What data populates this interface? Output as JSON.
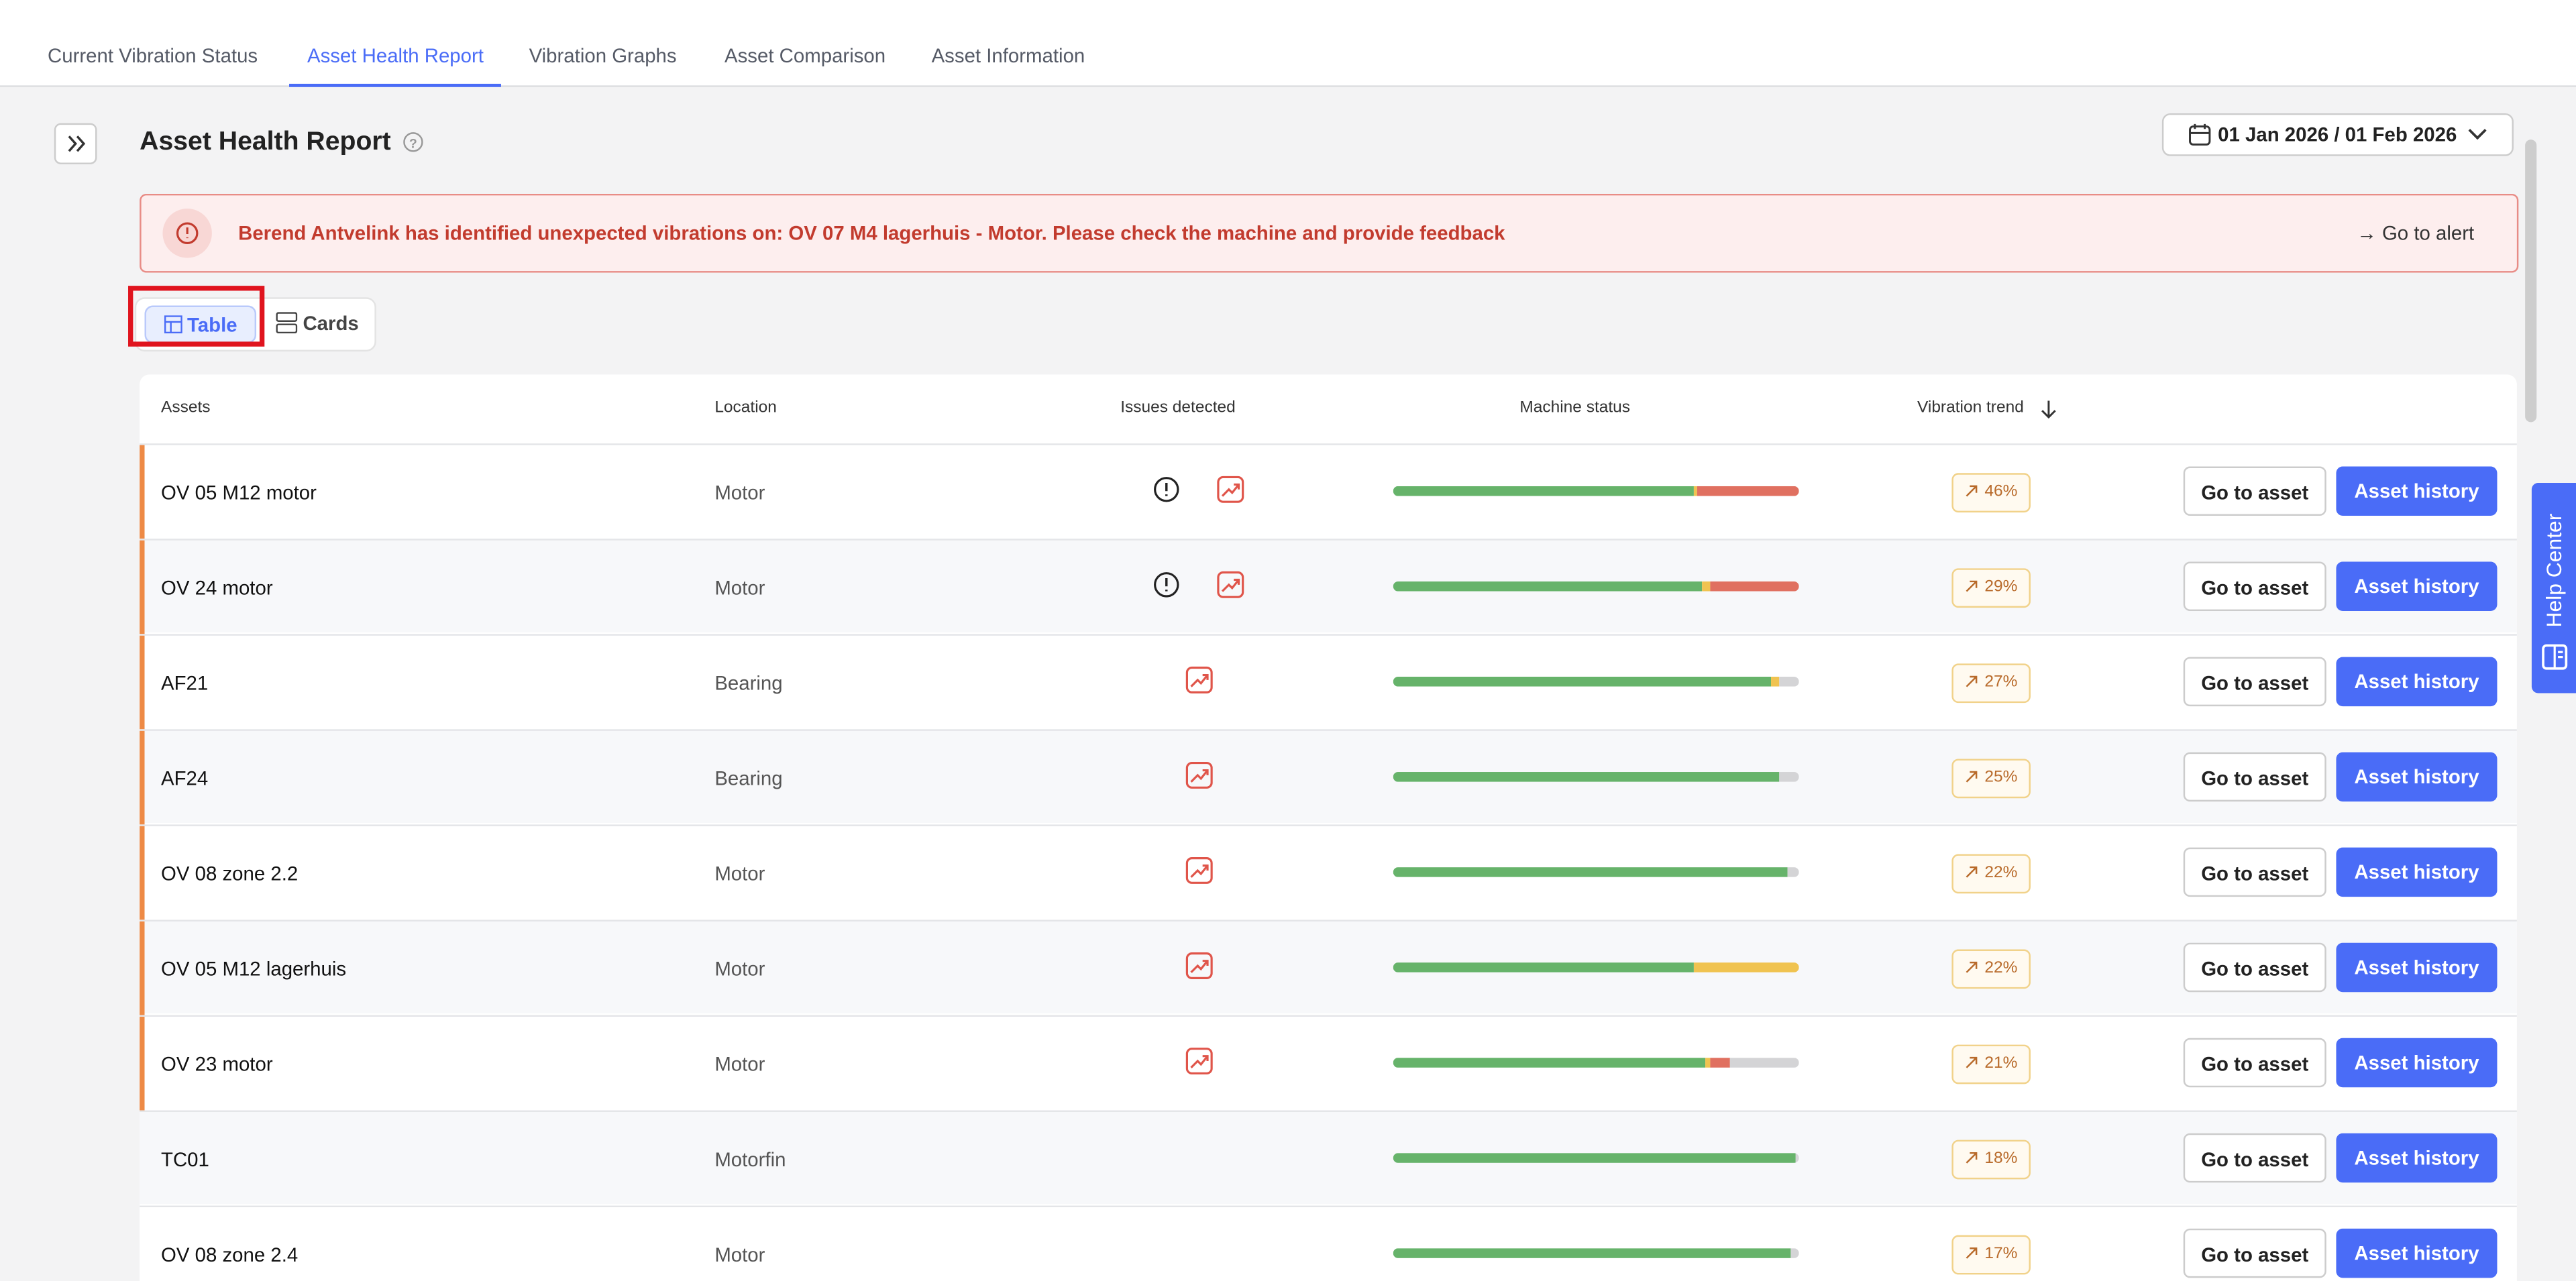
{
  "tabs": [
    "Current Vibration Status",
    "Asset Health Report",
    "Vibration Graphs",
    "Asset Comparison",
    "Asset Information"
  ],
  "active_tab": 1,
  "header": {
    "title": "Asset Health Report",
    "date_range": "01 Jan 2026 / 01 Feb 2026"
  },
  "alert": {
    "text": "Berend Antvelink has identified unexpected vibrations on: OV 07 M4 lagerhuis - Motor. Please check the machine and provide feedback",
    "action": "→ Go to alert"
  },
  "views": [
    "Table",
    "Cards"
  ],
  "table": {
    "headers": [
      "Assets",
      "Location",
      "Issues detected",
      "Machine status",
      "Vibration trend"
    ],
    "actions": [
      "Go to asset",
      "Asset history"
    ],
    "rows": [
      {
        "asset": "OV 05 M12 motor",
        "location": "Motor",
        "issues": [
          "alert",
          "trend"
        ],
        "status": [
          74,
          1,
          25,
          0
        ],
        "trend": "46%",
        "flagged": true
      },
      {
        "asset": "OV 24 motor",
        "location": "Motor",
        "issues": [
          "alert",
          "trend"
        ],
        "status": [
          76,
          2,
          22,
          0
        ],
        "trend": "29%",
        "flagged": true
      },
      {
        "asset": "AF21",
        "location": "Bearing",
        "issues": [
          "trend"
        ],
        "status": [
          93,
          2,
          0,
          5
        ],
        "trend": "27%",
        "flagged": true
      },
      {
        "asset": "AF24",
        "location": "Bearing",
        "issues": [
          "trend"
        ],
        "status": [
          95,
          0,
          0,
          5
        ],
        "trend": "25%",
        "flagged": true
      },
      {
        "asset": "OV 08 zone 2.2",
        "location": "Motor",
        "issues": [
          "trend"
        ],
        "status": [
          97,
          0,
          0,
          3
        ],
        "trend": "22%",
        "flagged": true
      },
      {
        "asset": "OV 05 M12 lagerhuis",
        "location": "Motor",
        "issues": [
          "trend"
        ],
        "status": [
          74,
          26,
          0,
          0
        ],
        "trend": "22%",
        "flagged": true
      },
      {
        "asset": "OV 23 motor",
        "location": "Motor",
        "issues": [
          "trend"
        ],
        "status": [
          77,
          1,
          5,
          17
        ],
        "trend": "21%",
        "flagged": true
      },
      {
        "asset": "TC01",
        "location": "Motorfin",
        "issues": [],
        "status": [
          99,
          0,
          0,
          1
        ],
        "trend": "18%",
        "flagged": false
      },
      {
        "asset": "OV 08 zone 2.4",
        "location": "Motor",
        "issues": [],
        "status": [
          98,
          0,
          0,
          2
        ],
        "trend": "17%",
        "flagged": false
      }
    ]
  },
  "help": "Help Center"
}
